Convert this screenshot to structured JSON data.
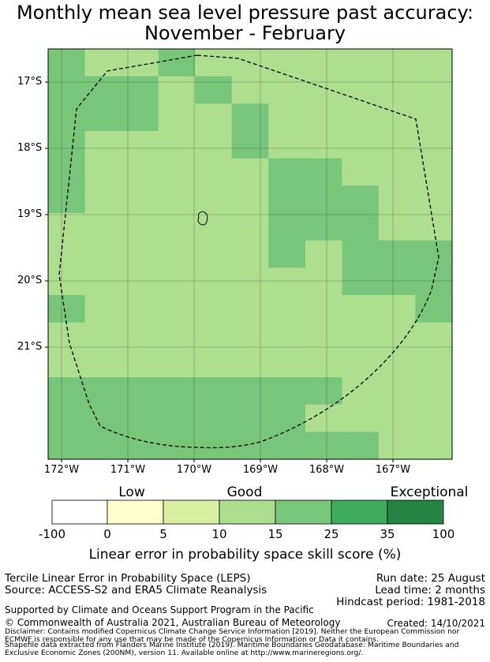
{
  "title": {
    "line1": "Monthly mean sea level pressure past accuracy:",
    "line2": "November - February"
  },
  "map": {
    "lat_labels": [
      "17°S",
      "18°S",
      "19°S",
      "20°S",
      "21°S"
    ],
    "lon_labels": [
      "172°W",
      "171°W",
      "170°W",
      "169°W",
      "168°W",
      "167°W"
    ],
    "grid": [
      [
        "B",
        "A",
        "A",
        "B",
        "A",
        "A",
        "A",
        "A",
        "A",
        "A",
        "A"
      ],
      [
        "B",
        "B",
        "B",
        "A",
        "B",
        "A",
        "A",
        "A",
        "A",
        "A",
        "A"
      ],
      [
        "B",
        "B",
        "B",
        "A",
        "A",
        "B",
        "A",
        "A",
        "A",
        "A",
        "A"
      ],
      [
        "B",
        "A",
        "A",
        "A",
        "A",
        "B",
        "A",
        "A",
        "A",
        "A",
        "A"
      ],
      [
        "B",
        "A",
        "A",
        "A",
        "A",
        "A",
        "B",
        "B",
        "A",
        "A",
        "A"
      ],
      [
        "B",
        "A",
        "A",
        "A",
        "A",
        "A",
        "B",
        "B",
        "B",
        "A",
        "A"
      ],
      [
        "A",
        "A",
        "A",
        "A",
        "A",
        "A",
        "B",
        "B",
        "B",
        "A",
        "A"
      ],
      [
        "A",
        "A",
        "A",
        "A",
        "A",
        "A",
        "B",
        "A",
        "B",
        "B",
        "B"
      ],
      [
        "A",
        "A",
        "A",
        "A",
        "A",
        "A",
        "A",
        "A",
        "B",
        "B",
        "B"
      ],
      [
        "B",
        "A",
        "A",
        "A",
        "A",
        "A",
        "A",
        "A",
        "A",
        "A",
        "B"
      ],
      [
        "A",
        "A",
        "A",
        "A",
        "A",
        "A",
        "A",
        "A",
        "A",
        "A",
        "A"
      ],
      [
        "A",
        "A",
        "A",
        "A",
        "A",
        "A",
        "A",
        "A",
        "A",
        "A",
        "A"
      ],
      [
        "B",
        "B",
        "B",
        "B",
        "B",
        "B",
        "B",
        "B",
        "A",
        "A",
        "A"
      ],
      [
        "B",
        "B",
        "B",
        "B",
        "B",
        "B",
        "B",
        "A",
        "A",
        "A",
        "A"
      ],
      [
        "B",
        "B",
        "B",
        "B",
        "B",
        "B",
        "B",
        "B",
        "B",
        "A",
        "A"
      ]
    ],
    "cell_colors": {
      "A": "#addf8e",
      "B": "#78c679"
    }
  },
  "colorbar": {
    "categories": [
      "Low",
      "Good",
      "Exceptional"
    ],
    "ticks": [
      "-100",
      "0",
      "5",
      "10",
      "15",
      "25",
      "35",
      "100"
    ],
    "colors": [
      "#ffffff",
      "#ffffcc",
      "#d9f0a3",
      "#addd8e",
      "#78c679",
      "#41ab5d",
      "#238443"
    ],
    "title": "Linear error in probability space skill score (%)"
  },
  "info": {
    "left1": "Tercile Linear Error in Probability Space (LEPS)",
    "left2": "Source: ACCESS-S2 and ERA5 Climate Reanalysis",
    "run_date": "Run date: 25 August",
    "lead_time": "Lead time: 2 months",
    "hindcast": "Hindcast period: 1981-2018",
    "supported": "Supported by Climate and Oceans Support Program in the Pacific",
    "copyright": "© Commonwealth of Australia 2021, Australian Bureau of Meteorology",
    "created": "Created: 14/10/2021",
    "disclaimer1": "Disclaimer: Contains modified Copernicus Climate Change Service Information [2019]. Neither the European Commission nor",
    "disclaimer2": "ECMWF is responsible for any use that may be made of the Copernicus Information or Data it contains.",
    "shapefile1": "Shapefile data extracted from Flanders Marine Institute (2019). Maritime Boundaries Geodatabase: Maritime Boundaries and",
    "shapefile2": "Exclusive Economic Zones (200NM), version 11. Available online at http://www.marineregions.org/."
  }
}
